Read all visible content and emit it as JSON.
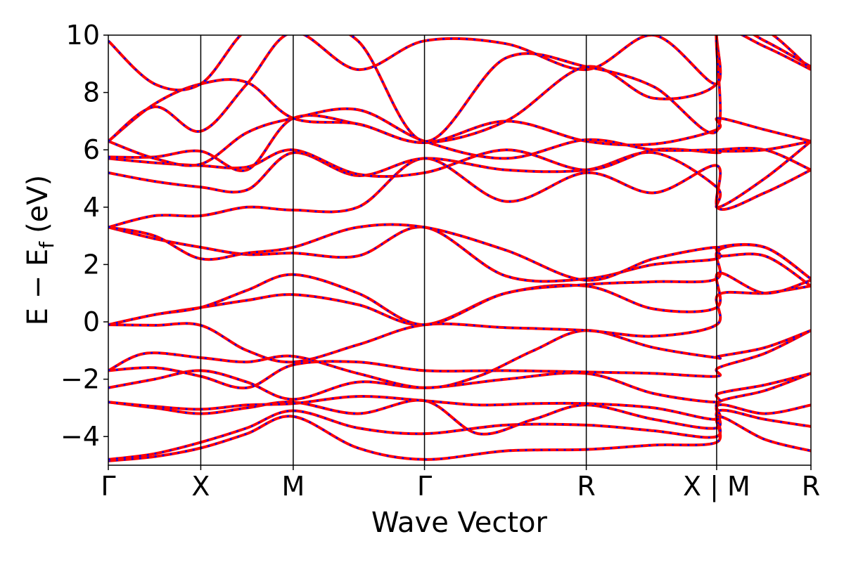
{
  "chart_data": {
    "type": "line",
    "title": "",
    "xlabel": "Wave Vector",
    "ylabel_main": "E − E",
    "ylabel_sub": "f",
    "ylabel_unit": "(eV)",
    "ylim": [
      -5,
      10
    ],
    "yticks": [
      -4,
      -2,
      0,
      2,
      4,
      6,
      8,
      10
    ],
    "ytick_labels": [
      "−4",
      "−2",
      "0",
      "2",
      "4",
      "6",
      "8",
      "10"
    ],
    "xlim": [
      0,
      7.6
    ],
    "kpoints": [
      {
        "label": "Γ",
        "x": 0
      },
      {
        "label": "X",
        "x": 1.0
      },
      {
        "label": "M",
        "x": 2.0
      },
      {
        "label": "Γ",
        "x": 3.42
      },
      {
        "label": "R",
        "x": 5.17
      },
      {
        "label": "X | M",
        "x": 6.58
      },
      {
        "label": "R",
        "x": 7.6
      }
    ],
    "grid": false,
    "series_colors": {
      "line1": "#ff0000",
      "line2": "#0000ff"
    },
    "bands": [
      [
        [
          0,
          -4.85
        ],
        [
          0.5,
          -4.7
        ],
        [
          1.0,
          -4.4
        ],
        [
          1.5,
          -3.9
        ],
        [
          2.0,
          -3.3
        ],
        [
          2.7,
          -4.4
        ],
        [
          3.42,
          -4.8
        ],
        [
          4.3,
          -4.5
        ],
        [
          5.17,
          -4.45
        ],
        [
          5.9,
          -4.3
        ],
        [
          6.58,
          -4.2
        ],
        [
          6.6,
          -3.3
        ],
        [
          7.1,
          -4.1
        ],
        [
          7.6,
          -4.5
        ]
      ],
      [
        [
          0,
          -4.8
        ],
        [
          0.5,
          -4.6
        ],
        [
          1.0,
          -4.2
        ],
        [
          1.5,
          -3.7
        ],
        [
          2.0,
          -3.1
        ],
        [
          2.7,
          -3.7
        ],
        [
          3.42,
          -3.9
        ],
        [
          4.3,
          -3.6
        ],
        [
          5.17,
          -3.6
        ],
        [
          5.9,
          -3.8
        ],
        [
          6.58,
          -4.0
        ],
        [
          6.6,
          -3.1
        ],
        [
          7.1,
          -3.4
        ],
        [
          7.6,
          -3.65
        ]
      ],
      [
        [
          0,
          -2.8
        ],
        [
          0.5,
          -3.0
        ],
        [
          1.0,
          -3.2
        ],
        [
          1.5,
          -3.0
        ],
        [
          2.0,
          -2.8
        ],
        [
          2.7,
          -3.2
        ],
        [
          3.42,
          -2.75
        ],
        [
          4.0,
          -3.9
        ],
        [
          4.6,
          -3.4
        ],
        [
          5.17,
          -2.9
        ],
        [
          5.9,
          -3.4
        ],
        [
          6.58,
          -3.7
        ],
        [
          6.6,
          -2.9
        ],
        [
          7.1,
          -3.2
        ],
        [
          7.6,
          -2.9
        ]
      ],
      [
        [
          0,
          -2.8
        ],
        [
          0.5,
          -2.95
        ],
        [
          1.0,
          -3.05
        ],
        [
          1.5,
          -2.9
        ],
        [
          2.0,
          -2.85
        ],
        [
          2.7,
          -2.6
        ],
        [
          3.42,
          -2.75
        ],
        [
          4.0,
          -2.9
        ],
        [
          4.6,
          -2.85
        ],
        [
          5.17,
          -2.85
        ],
        [
          5.9,
          -3.0
        ],
        [
          6.58,
          -3.4
        ],
        [
          6.6,
          -2.8
        ],
        [
          7.1,
          -2.4
        ],
        [
          7.6,
          -1.8
        ]
      ],
      [
        [
          0,
          -2.3
        ],
        [
          0.5,
          -2.0
        ],
        [
          1.0,
          -1.7
        ],
        [
          1.5,
          -2.1
        ],
        [
          2.0,
          -2.7
        ],
        [
          2.7,
          -2.1
        ],
        [
          3.42,
          -2.3
        ],
        [
          4.3,
          -2.0
        ],
        [
          5.17,
          -1.8
        ],
        [
          5.9,
          -2.5
        ],
        [
          6.58,
          -2.8
        ],
        [
          6.6,
          -2.5
        ],
        [
          7.1,
          -2.2
        ],
        [
          7.6,
          -1.8
        ]
      ],
      [
        [
          0,
          -1.7
        ],
        [
          0.5,
          -1.6
        ],
        [
          1.0,
          -1.9
        ],
        [
          1.5,
          -2.3
        ],
        [
          2.0,
          -1.5
        ],
        [
          2.7,
          -1.4
        ],
        [
          3.42,
          -1.7
        ],
        [
          4.3,
          -1.7
        ],
        [
          5.17,
          -1.75
        ],
        [
          5.9,
          -1.8
        ],
        [
          6.58,
          -1.9
        ],
        [
          6.6,
          -1.6
        ],
        [
          7.1,
          -1.1
        ],
        [
          7.6,
          -0.3
        ]
      ],
      [
        [
          0,
          -1.7
        ],
        [
          0.4,
          -1.1
        ],
        [
          1.0,
          -1.25
        ],
        [
          1.5,
          -1.4
        ],
        [
          2.0,
          -1.2
        ],
        [
          2.7,
          -1.8
        ],
        [
          3.42,
          -2.3
        ],
        [
          4.0,
          -1.9
        ],
        [
          4.6,
          -1.0
        ],
        [
          5.17,
          -0.3
        ],
        [
          5.9,
          -0.9
        ],
        [
          6.58,
          -1.25
        ],
        [
          6.6,
          -1.2
        ],
        [
          7.1,
          -0.9
        ],
        [
          7.6,
          -0.3
        ]
      ],
      [
        [
          0,
          -0.1
        ],
        [
          0.5,
          -0.12
        ],
        [
          1.0,
          -0.12
        ],
        [
          1.5,
          -1.0
        ],
        [
          2.0,
          -1.4
        ],
        [
          2.7,
          -0.8
        ],
        [
          3.42,
          -0.1
        ],
        [
          4.3,
          -0.2
        ],
        [
          5.17,
          -0.3
        ],
        [
          5.9,
          -0.5
        ],
        [
          6.58,
          -0.1
        ],
        [
          6.6,
          0.95
        ],
        [
          7.1,
          1.0
        ],
        [
          7.6,
          1.25
        ]
      ],
      [
        [
          0,
          -0.1
        ],
        [
          0.5,
          0.25
        ],
        [
          1.0,
          0.5
        ],
        [
          1.5,
          0.75
        ],
        [
          2.0,
          0.95
        ],
        [
          2.7,
          0.6
        ],
        [
          3.42,
          -0.1
        ],
        [
          4.3,
          1.0
        ],
        [
          5.17,
          1.25
        ],
        [
          5.9,
          0.45
        ],
        [
          6.58,
          0.5
        ],
        [
          6.6,
          1.7
        ],
        [
          7.1,
          1.0
        ],
        [
          7.6,
          1.45
        ]
      ],
      [
        [
          0,
          -0.1
        ],
        [
          0.5,
          0.25
        ],
        [
          1.0,
          0.5
        ],
        [
          1.5,
          1.1
        ],
        [
          2.0,
          1.65
        ],
        [
          2.7,
          1.0
        ],
        [
          3.42,
          -0.1
        ],
        [
          4.3,
          1.0
        ],
        [
          5.17,
          1.3
        ],
        [
          5.9,
          1.4
        ],
        [
          6.58,
          1.5
        ],
        [
          6.6,
          2.5
        ],
        [
          7.1,
          2.6
        ],
        [
          7.6,
          1.5
        ]
      ],
      [
        [
          0,
          3.3
        ],
        [
          0.5,
          2.9
        ],
        [
          1.0,
          2.6
        ],
        [
          1.5,
          2.35
        ],
        [
          2.0,
          2.4
        ],
        [
          2.7,
          2.3
        ],
        [
          3.42,
          3.3
        ],
        [
          4.3,
          1.6
        ],
        [
          5.17,
          1.5
        ],
        [
          5.9,
          2.0
        ],
        [
          6.58,
          2.2
        ],
        [
          6.6,
          2.6
        ],
        [
          7.1,
          2.6
        ],
        [
          7.6,
          1.5
        ]
      ],
      [
        [
          0,
          3.3
        ],
        [
          0.5,
          3.0
        ],
        [
          1.0,
          2.2
        ],
        [
          1.5,
          2.4
        ],
        [
          2.0,
          2.6
        ],
        [
          2.7,
          3.3
        ],
        [
          3.42,
          3.3
        ],
        [
          4.3,
          2.5
        ],
        [
          5.17,
          1.45
        ],
        [
          5.9,
          2.2
        ],
        [
          6.58,
          2.6
        ],
        [
          6.6,
          2.3
        ],
        [
          7.1,
          2.3
        ],
        [
          7.6,
          1.25
        ]
      ],
      [
        [
          0,
          3.3
        ],
        [
          0.5,
          3.7
        ],
        [
          1.0,
          3.7
        ],
        [
          1.5,
          4.0
        ],
        [
          2.0,
          3.9
        ],
        [
          2.7,
          4.0
        ],
        [
          3.42,
          5.7
        ],
        [
          4.3,
          4.2
        ],
        [
          5.17,
          5.2
        ],
        [
          5.9,
          4.5
        ],
        [
          6.58,
          5.45
        ],
        [
          6.6,
          3.95
        ],
        [
          7.1,
          4.5
        ],
        [
          7.6,
          5.3
        ]
      ],
      [
        [
          0,
          5.2
        ],
        [
          0.5,
          4.9
        ],
        [
          1.0,
          4.7
        ],
        [
          1.5,
          4.6
        ],
        [
          2.0,
          5.9
        ],
        [
          2.7,
          5.1
        ],
        [
          3.42,
          5.7
        ],
        [
          4.3,
          5.3
        ],
        [
          5.17,
          5.3
        ],
        [
          5.9,
          5.9
        ],
        [
          6.58,
          4.7
        ],
        [
          6.6,
          4.0
        ],
        [
          7.1,
          5.0
        ],
        [
          7.6,
          6.3
        ]
      ],
      [
        [
          0,
          5.7
        ],
        [
          0.5,
          5.55
        ],
        [
          1.0,
          5.45
        ],
        [
          1.5,
          5.4
        ],
        [
          2.0,
          6.0
        ],
        [
          2.7,
          5.15
        ],
        [
          3.42,
          5.2
        ],
        [
          4.3,
          6.0
        ],
        [
          5.17,
          5.3
        ],
        [
          5.9,
          6.0
        ],
        [
          6.58,
          5.9
        ],
        [
          6.6,
          6.0
        ],
        [
          7.1,
          6.0
        ],
        [
          7.6,
          5.3
        ]
      ],
      [
        [
          0,
          5.75
        ],
        [
          0.5,
          5.75
        ],
        [
          1.0,
          5.95
        ],
        [
          1.5,
          5.3
        ],
        [
          2.0,
          7.1
        ],
        [
          2.7,
          6.9
        ],
        [
          3.42,
          6.25
        ],
        [
          4.3,
          7.0
        ],
        [
          5.17,
          6.3
        ],
        [
          5.9,
          6.2
        ],
        [
          6.58,
          6.7
        ],
        [
          6.6,
          7.1
        ],
        [
          7.1,
          6.7
        ],
        [
          7.6,
          6.3
        ]
      ],
      [
        [
          0,
          6.3
        ],
        [
          0.5,
          5.7
        ],
        [
          1.0,
          5.5
        ],
        [
          1.5,
          6.6
        ],
        [
          2.0,
          7.1
        ],
        [
          2.7,
          7.4
        ],
        [
          3.42,
          6.3
        ],
        [
          4.3,
          5.7
        ],
        [
          5.17,
          6.35
        ],
        [
          5.9,
          6.0
        ],
        [
          6.58,
          6.0
        ],
        [
          6.6,
          5.95
        ],
        [
          7.1,
          6.0
        ],
        [
          7.6,
          6.3
        ]
      ],
      [
        [
          0,
          6.3
        ],
        [
          0.5,
          7.6
        ],
        [
          1.0,
          8.3
        ],
        [
          1.5,
          8.35
        ],
        [
          2.0,
          7.1
        ],
        [
          2.7,
          6.9
        ],
        [
          3.42,
          6.25
        ],
        [
          4.3,
          7.0
        ],
        [
          5.17,
          8.9
        ],
        [
          5.9,
          7.8
        ],
        [
          6.58,
          8.3
        ],
        [
          6.6,
          10.2
        ],
        [
          7.1,
          9.6
        ],
        [
          7.6,
          8.8
        ]
      ],
      [
        [
          0,
          6.3
        ],
        [
          0.5,
          7.5
        ],
        [
          1.0,
          6.65
        ],
        [
          1.5,
          8.3
        ],
        [
          2.0,
          10.1
        ],
        [
          2.7,
          8.8
        ],
        [
          3.42,
          9.8
        ],
        [
          4.3,
          9.7
        ],
        [
          5.17,
          8.8
        ],
        [
          5.9,
          10.0
        ],
        [
          6.58,
          8.3
        ],
        [
          6.6,
          10.5
        ],
        [
          7.1,
          9.8
        ],
        [
          7.6,
          8.9
        ]
      ],
      [
        [
          0,
          9.8
        ],
        [
          0.5,
          8.3
        ],
        [
          1.0,
          8.3
        ],
        [
          1.5,
          10.2
        ],
        [
          2.0,
          10.5
        ],
        [
          2.7,
          9.8
        ],
        [
          3.42,
          6.3
        ],
        [
          4.3,
          9.2
        ],
        [
          5.17,
          8.9
        ],
        [
          5.9,
          8.2
        ],
        [
          6.58,
          6.65
        ],
        [
          6.6,
          10.6
        ],
        [
          7.1,
          10.2
        ],
        [
          7.6,
          8.8
        ]
      ]
    ]
  }
}
